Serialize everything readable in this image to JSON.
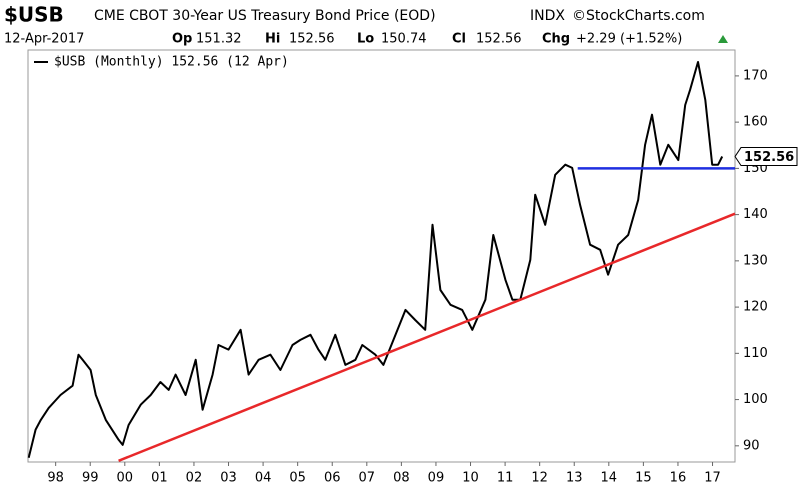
{
  "chart_data": {
    "type": "line",
    "symbol": "$USB",
    "title": "CME CBOT 30-Year US Treasury Bond Price (EOD)",
    "exchange": "INDX",
    "source": "©StockCharts.com",
    "date": "12-Apr-2017",
    "quote": [
      {
        "label": "Op",
        "value": "151.32"
      },
      {
        "label": "Hi",
        "value": "152.56"
      },
      {
        "label": "Lo",
        "value": "150.74"
      },
      {
        "label": "Cl",
        "value": "152.56"
      },
      {
        "label": "Chg",
        "value": "+2.29 (+1.52%)"
      }
    ],
    "x": [
      1997.22,
      1997.42,
      1997.57,
      1997.8,
      1998.14,
      1998.49,
      1998.66,
      1998.78,
      1999.01,
      1999.16,
      1999.45,
      1999.82,
      1999.94,
      2000.11,
      2000.46,
      2000.75,
      2001.03,
      2001.27,
      2001.47,
      2001.76,
      2002.05,
      2002.25,
      2002.54,
      2002.71,
      2003.0,
      2003.35,
      2003.58,
      2003.87,
      2004.21,
      2004.5,
      2004.85,
      2005.08,
      2005.37,
      2005.6,
      2005.8,
      2006.09,
      2006.38,
      2006.67,
      2006.87,
      2007.25,
      2007.48,
      2007.83,
      2008.12,
      2008.4,
      2008.69,
      2008.9,
      2009.13,
      2009.42,
      2009.76,
      2010.05,
      2010.43,
      2010.66,
      2011.01,
      2011.21,
      2011.44,
      2011.73,
      2011.87,
      2012.16,
      2012.45,
      2012.74,
      2012.94,
      2013.17,
      2013.46,
      2013.75,
      2013.98,
      2014.27,
      2014.56,
      2014.85,
      2015.05,
      2015.25,
      2015.49,
      2015.72,
      2016.01,
      2016.21,
      2016.35,
      2016.58,
      2016.79,
      2016.99,
      2017.16,
      2017.28
    ],
    "series": [
      {
        "name": "$USB (Monthly) 152.56 (12 Apr)",
        "color": "#000000",
        "values": [
          87.4,
          93.5,
          95.6,
          98.2,
          101,
          103,
          109.7,
          108.6,
          106.4,
          101,
          95.6,
          91.3,
          90.2,
          94.5,
          98.9,
          101,
          103.8,
          102.1,
          105.4,
          101,
          108.6,
          97.8,
          105.4,
          111.8,
          110.8,
          115.1,
          105.4,
          108.6,
          109.7,
          106.4,
          111.8,
          112.9,
          114,
          110.8,
          108.6,
          114,
          107.5,
          108.6,
          111.8,
          109.7,
          107.5,
          114,
          119.4,
          117.2,
          115.1,
          137.8,
          123.7,
          120.5,
          119.4,
          115.1,
          121.6,
          135.6,
          125.9,
          121.6,
          121.6,
          130.2,
          144.3,
          137.8,
          148.6,
          150.8,
          150.1,
          142.1,
          133.5,
          132.4,
          127,
          133.5,
          135.6,
          143.2,
          155.1,
          161.6,
          150.8,
          155.1,
          151.8,
          163.7,
          167,
          173,
          164.8,
          150.8,
          150.8,
          152.56
        ]
      }
    ],
    "lines": [
      {
        "color": "#e8282a",
        "x": [
          1999.82,
          2017.65
        ],
        "y": [
          86.76,
          140.2
        ]
      },
      {
        "color": "#1f2fe0",
        "x": [
          2013.1,
          2017.65
        ],
        "y": [
          150,
          150
        ]
      }
    ],
    "price_tag": 152.56,
    "xlim": [
      1997.2,
      2017.65
    ],
    "ylim": [
      86.5,
      175.6
    ],
    "yticks": [
      90,
      100,
      110,
      120,
      130,
      140,
      150,
      160,
      170
    ],
    "xticks": [
      {
        "value": 1998,
        "label": "98"
      },
      {
        "value": 1999,
        "label": "99"
      },
      {
        "value": 2000,
        "label": "00"
      },
      {
        "value": 2001,
        "label": "01"
      },
      {
        "value": 2002,
        "label": "02"
      },
      {
        "value": 2003,
        "label": "03"
      },
      {
        "value": 2004,
        "label": "04"
      },
      {
        "value": 2005,
        "label": "05"
      },
      {
        "value": 2006,
        "label": "06"
      },
      {
        "value": 2007,
        "label": "07"
      },
      {
        "value": 2008,
        "label": "08"
      },
      {
        "value": 2009,
        "label": "09"
      },
      {
        "value": 2010,
        "label": "10"
      },
      {
        "value": 2011,
        "label": "11"
      },
      {
        "value": 2012,
        "label": "12"
      },
      {
        "value": 2013,
        "label": "13"
      },
      {
        "value": 2014,
        "label": "14"
      },
      {
        "value": 2015,
        "label": "15"
      },
      {
        "value": 2016,
        "label": "16"
      },
      {
        "value": 2017,
        "label": "17"
      }
    ]
  }
}
